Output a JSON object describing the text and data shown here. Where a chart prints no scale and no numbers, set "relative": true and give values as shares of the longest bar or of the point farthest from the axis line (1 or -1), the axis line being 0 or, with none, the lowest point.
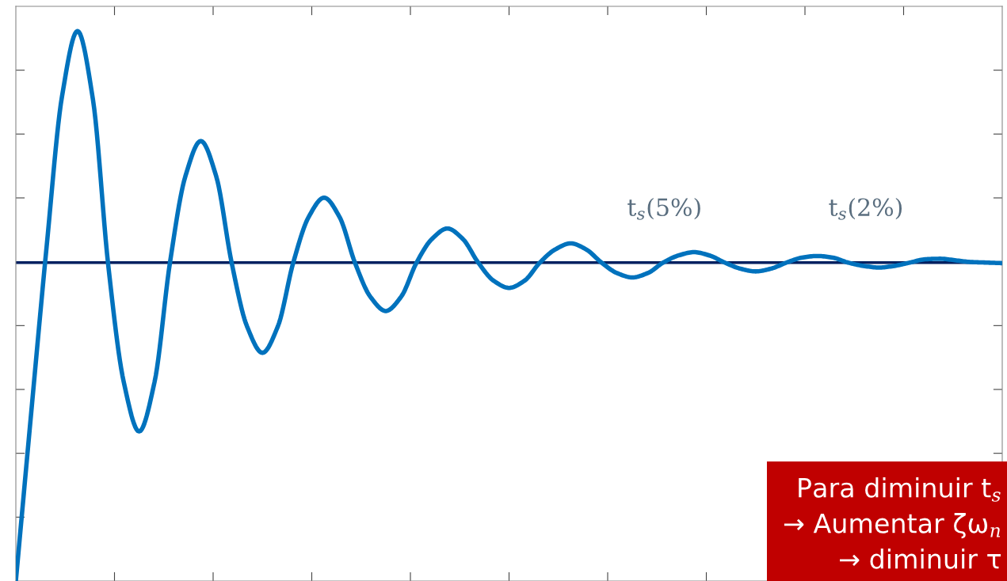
{
  "chart_data": {
    "type": "line",
    "relative": true,
    "tick_labels": false,
    "grid": false,
    "color": "#0072bd",
    "categories": [
      null,
      null,
      null,
      null,
      null,
      null,
      null,
      null,
      null,
      null,
      null,
      null,
      null,
      null,
      null,
      null,
      null,
      null,
      null,
      null,
      null,
      null,
      null,
      null,
      null,
      null,
      null,
      null,
      null,
      null,
      null,
      null,
      null,
      null,
      null,
      null,
      null,
      null,
      null,
      null,
      null,
      null,
      null,
      null,
      null,
      null,
      null,
      null,
      null,
      null,
      null,
      null,
      null,
      null,
      null,
      null,
      null,
      null,
      null,
      null,
      null,
      null,
      null,
      null,
      null
    ],
    "values": [
      0,
      0.307,
      0.609,
      0.882,
      1,
      0.876,
      0.573,
      0.362,
      0.272,
      0.362,
      0.579,
      0.736,
      0.8,
      0.736,
      0.579,
      0.463,
      0.415,
      0.463,
      0.579,
      0.662,
      0.697,
      0.662,
      0.579,
      0.517,
      0.491,
      0.517,
      0.579,
      0.622,
      0.641,
      0.622,
      0.579,
      0.546,
      0.533,
      0.546,
      0.579,
      0.603,
      0.614,
      0.603,
      0.579,
      0.56,
      0.552,
      0.56,
      0.579,
      0.592,
      0.598,
      0.592,
      0.579,
      0.568,
      0.563,
      0.568,
      0.579,
      0.588,
      0.591,
      0.588,
      0.579,
      0.573,
      0.57,
      0.573,
      0.579,
      0.585,
      0.586,
      0.583,
      0.58,
      0.579,
      0.578
    ],
    "ref_lines": [
      {
        "axis": "y",
        "value": 0.579,
        "color": "#002060"
      }
    ],
    "annotations": [
      "t$_{s}$(5%)",
      "t$_{s}$(2%)",
      "Para diminuir t$_{s}$\n→ Aumentar ζω$_{n}$\n→ diminuir τ"
    ]
  }
}
